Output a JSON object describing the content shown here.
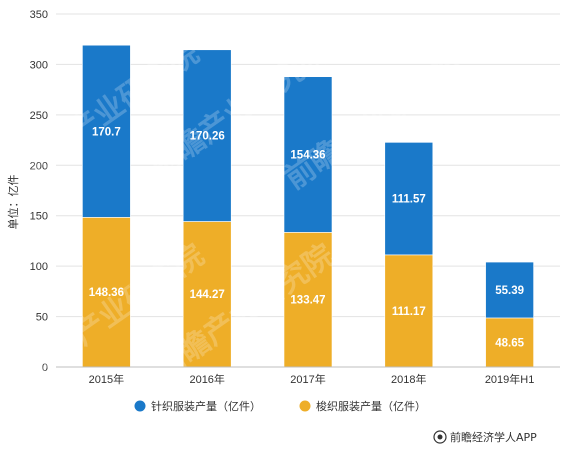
{
  "chart_data": {
    "type": "bar",
    "stacked": true,
    "categories": [
      "2015年",
      "2016年",
      "2017年",
      "2018年",
      "2019年H1"
    ],
    "series": [
      {
        "name": "梭织服装产量（亿件）",
        "values": [
          148.36,
          144.27,
          133.47,
          111.17,
          48.65
        ],
        "color": "#EEAE28"
      },
      {
        "name": "针织服装产量（亿件）",
        "values": [
          170.7,
          170.26,
          154.36,
          111.57,
          55.39
        ],
        "color": "#1A79C9"
      }
    ],
    "value_labels": [
      [
        "148.36",
        "144.27",
        "133.47",
        "111.17",
        "48.65"
      ],
      [
        "170.7",
        "170.26",
        "154.36",
        "111.57",
        "55.39"
      ]
    ],
    "title": "",
    "xlabel": "",
    "ylabel": "单位：亿件",
    "ylim": [
      0,
      350
    ],
    "yticks": [
      0,
      50,
      100,
      150,
      200,
      250,
      300,
      350
    ],
    "grid": true,
    "legend": {
      "placement": "bottom",
      "order": [
        1,
        0
      ]
    }
  },
  "watermark": "前瞻产业研究院",
  "source": "前瞻经济学人APP"
}
